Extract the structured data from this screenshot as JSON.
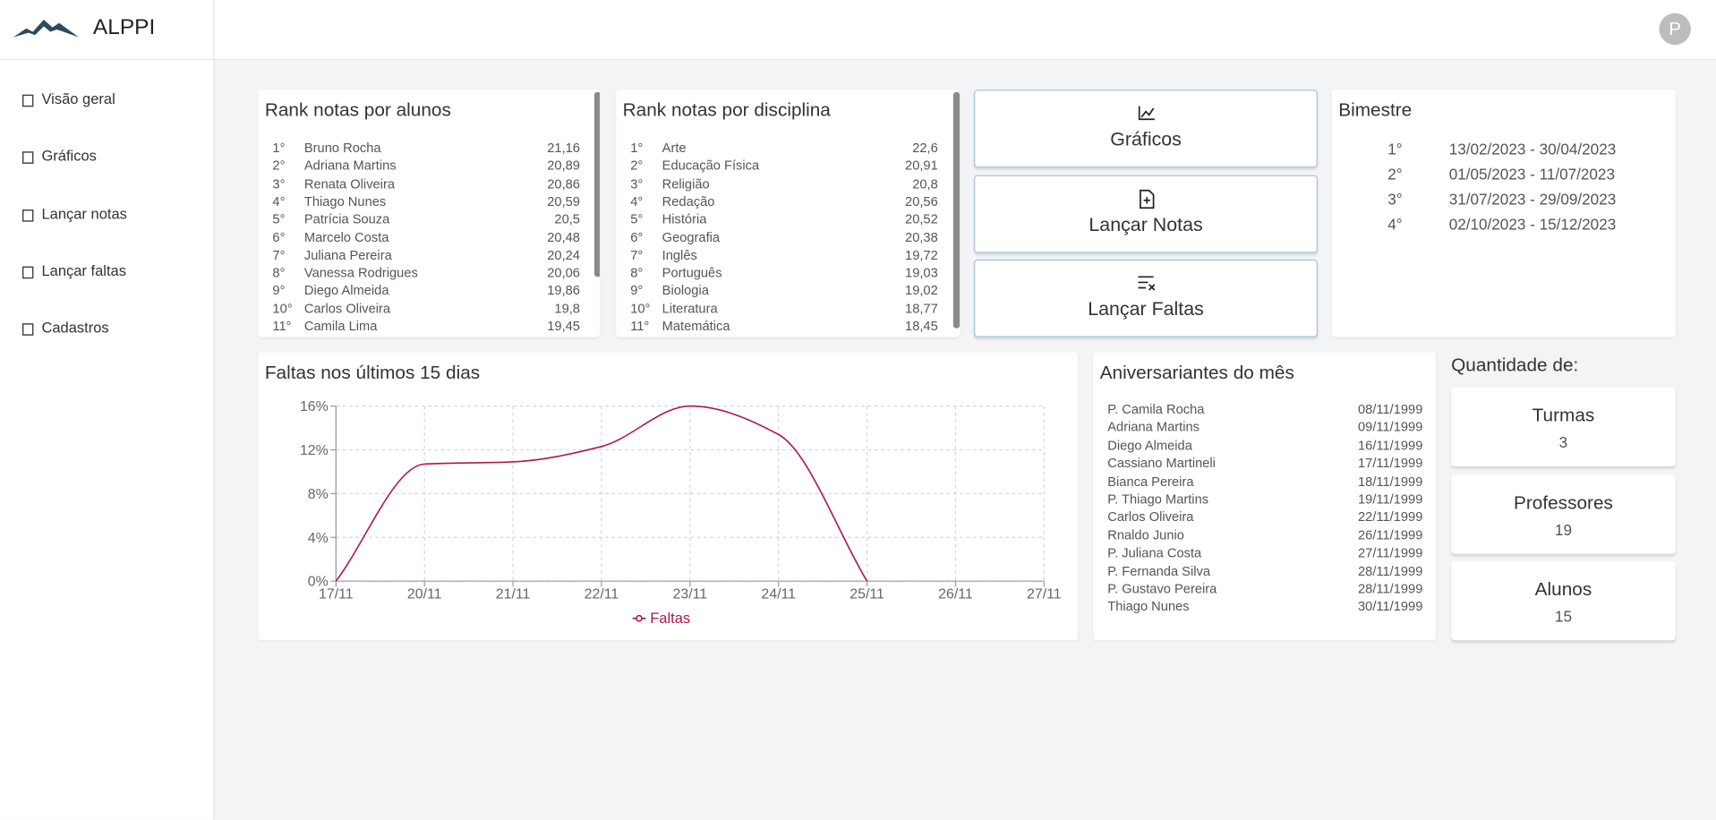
{
  "header": {
    "brand": "ALPPI",
    "avatar": "P"
  },
  "nav": [
    "Visão geral",
    "Gráficos",
    "Lançar notas",
    "Lançar faltas",
    "Cadastros"
  ],
  "rank_alunos": {
    "title": "Rank notas por alunos",
    "rows": [
      [
        "1°",
        "Bruno Rocha",
        "21,16"
      ],
      [
        "2°",
        "Adriana Martins",
        "20,89"
      ],
      [
        "3°",
        "Renata Oliveira",
        "20,86"
      ],
      [
        "4°",
        "Thiago Nunes",
        "20,59"
      ],
      [
        "5°",
        "Patrícia Souza",
        "20,5"
      ],
      [
        "6°",
        "Marcelo Costa",
        "20,48"
      ],
      [
        "7°",
        "Juliana Pereira",
        "20,24"
      ],
      [
        "8°",
        "Vanessa Rodrigues",
        "20,06"
      ],
      [
        "9°",
        "Diego Almeida",
        "19,86"
      ],
      [
        "10°",
        "Carlos Oliveira",
        "19,8"
      ],
      [
        "11°",
        "Camila Lima",
        "19,45"
      ]
    ]
  },
  "rank_disciplinas": {
    "title": "Rank notas por disciplina",
    "rows": [
      [
        "1°",
        "Arte",
        "22,6"
      ],
      [
        "2°",
        "Educação Física",
        "20,91"
      ],
      [
        "3°",
        "Religião",
        "20,8"
      ],
      [
        "4°",
        "Redação",
        "20,56"
      ],
      [
        "5°",
        "História",
        "20,52"
      ],
      [
        "6°",
        "Geografia",
        "20,38"
      ],
      [
        "7°",
        "Inglês",
        "19,72"
      ],
      [
        "8°",
        "Português",
        "19,03"
      ],
      [
        "9°",
        "Biologia",
        "19,02"
      ],
      [
        "10°",
        "Literatura",
        "18,77"
      ],
      [
        "11°",
        "Matemática",
        "18,45"
      ]
    ]
  },
  "buttons": [
    "Gráficos",
    "Lançar Notas",
    "Lançar Faltas"
  ],
  "bimestre": {
    "title": "Bimestre",
    "rows": [
      [
        "1°",
        "13/02/2023 - 30/04/2023"
      ],
      [
        "2°",
        "01/05/2023 - 11/07/2023"
      ],
      [
        "3°",
        "31/07/2023 - 29/09/2023"
      ],
      [
        "4°",
        "02/10/2023 - 15/12/2023"
      ]
    ]
  },
  "chart_data": {
    "type": "line",
    "title": "Faltas nos últimos 15 dias",
    "categories": [
      "17/11",
      "20/11",
      "21/11",
      "22/11",
      "23/11",
      "24/11",
      "25/11",
      "26/11",
      "27/11"
    ],
    "series": [
      {
        "name": "Faltas",
        "color": "#b0174a",
        "values": [
          0,
          10.7,
          10.9,
          12.3,
          16,
          13.4,
          0,
          null,
          null
        ]
      }
    ],
    "ylim": [
      0,
      16
    ],
    "yticks": [
      {
        "value": 0,
        "label": "0%"
      },
      {
        "value": 4,
        "label": "4%"
      },
      {
        "value": 8,
        "label": "8%"
      },
      {
        "value": 12,
        "label": "12%"
      },
      {
        "value": 16,
        "label": "16%"
      }
    ],
    "grid": true,
    "legend": "bottom"
  },
  "aniversariantes": {
    "title": "Aniversariantes do mês",
    "rows": [
      [
        "P. Camila Rocha",
        "08/11/1999"
      ],
      [
        "Adriana Martins",
        "09/11/1999"
      ],
      [
        "Diego Almeida",
        "16/11/1999"
      ],
      [
        "Cassiano Martineli",
        "17/11/1999"
      ],
      [
        "Bianca Pereira",
        "18/11/1999"
      ],
      [
        "P. Thiago Martins",
        "19/11/1999"
      ],
      [
        "Carlos Oliveira",
        "22/11/1999"
      ],
      [
        "Rnaldo Junio",
        "26/11/1999"
      ],
      [
        "P. Juliana Costa",
        "27/11/1999"
      ],
      [
        "P. Fernanda Silva",
        "28/11/1999"
      ],
      [
        "P. Gustavo Pereira",
        "28/11/1999"
      ],
      [
        "Thiago Nunes",
        "30/11/1999"
      ]
    ]
  },
  "quantidade": {
    "title": "Quantidade de:",
    "items": [
      [
        "Turmas",
        "3"
      ],
      [
        "Professores",
        "19"
      ],
      [
        "Alunos",
        "15"
      ]
    ]
  }
}
